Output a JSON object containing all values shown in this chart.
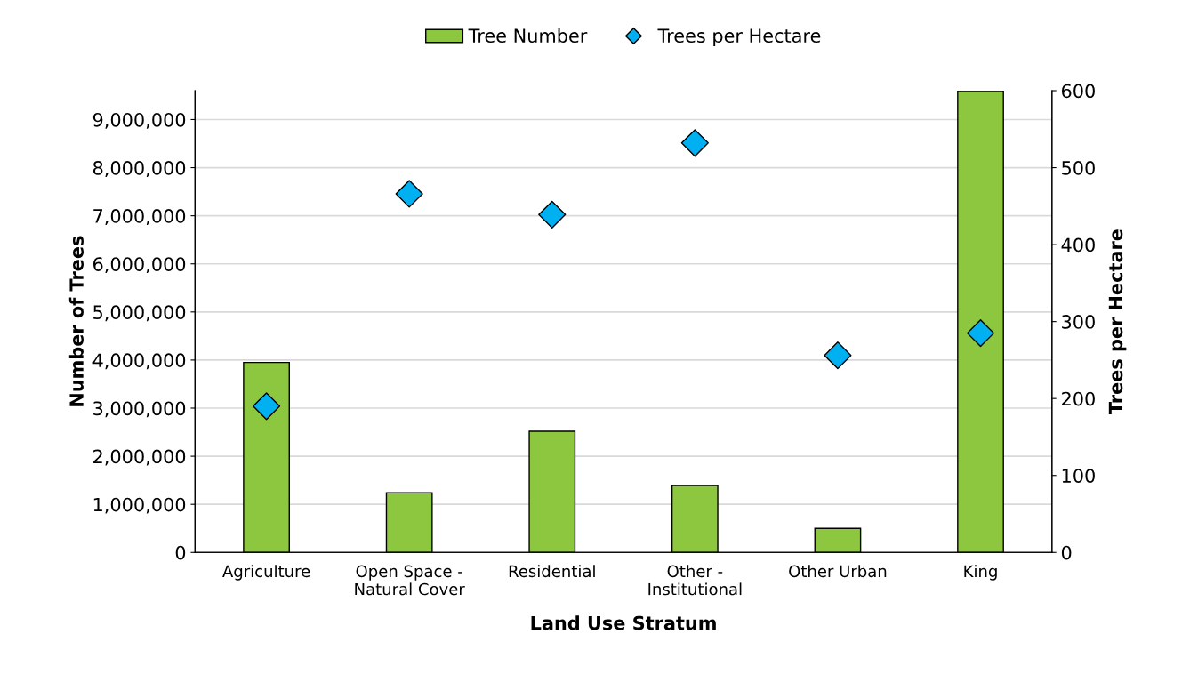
{
  "chart_data": {
    "type": "bar",
    "xlabel": "Land Use Stratum",
    "ylabel": "Number of Trees",
    "y2label": "Trees per Hectare",
    "categories": [
      "Agriculture",
      "Open Space -\nNatural Cover",
      "Residential",
      "Other -\nInstitutional",
      "Other Urban",
      "King"
    ],
    "series": [
      {
        "name": "Tree Number",
        "color": "#8dc63f",
        "values": [
          3950000,
          1240000,
          2520000,
          1390000,
          500000,
          9600000
        ]
      },
      {
        "name": "Trees per Hectare",
        "type": "scatter",
        "axis": "y2",
        "color": "#00b0f0",
        "marker": "diamond",
        "values": [
          190,
          466,
          439,
          532,
          256,
          285
        ]
      }
    ],
    "ylim": [
      0,
      9600000
    ],
    "yticks": [
      {
        "value": 0,
        "label": "0"
      },
      {
        "value": 1000000,
        "label": "1,000,000"
      },
      {
        "value": 2000000,
        "label": "2,000,000"
      },
      {
        "value": 3000000,
        "label": "3,000,000"
      },
      {
        "value": 4000000,
        "label": "4,000,000"
      },
      {
        "value": 5000000,
        "label": "5,000,000"
      },
      {
        "value": 6000000,
        "label": "6,000,000"
      },
      {
        "value": 7000000,
        "label": "7,000,000"
      },
      {
        "value": 8000000,
        "label": "8,000,000"
      },
      {
        "value": 9000000,
        "label": "9,000,000"
      }
    ],
    "y2lim": [
      0,
      600
    ],
    "y2ticks": [
      0,
      100,
      200,
      300,
      400,
      500,
      600
    ],
    "grid": "y",
    "legend": "top"
  }
}
